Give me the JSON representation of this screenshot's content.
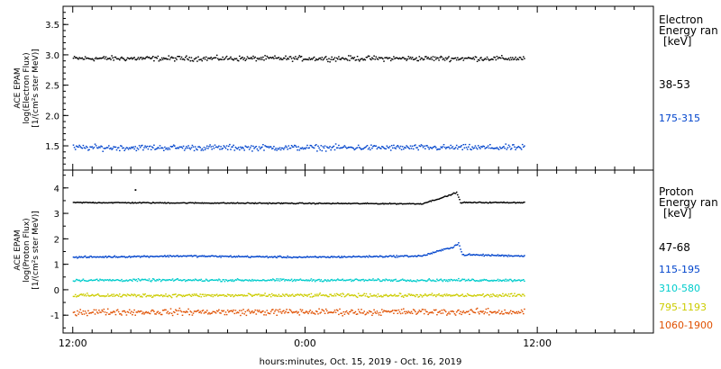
{
  "x_axis": {
    "title": "hours:minutes, Oct. 15, 2019 - Oct. 16, 2019",
    "ticks": [
      {
        "hours": 0,
        "label": "12:00"
      },
      {
        "hours": 12,
        "label": "0:00"
      },
      {
        "hours": 24,
        "label": "12:00"
      }
    ],
    "minor_every_hours": 1,
    "range_hours": [
      -0.5,
      30
    ]
  },
  "panels": [
    {
      "id": "electron",
      "ylabel": [
        "ACE EPAM",
        "log(Electron Flux)",
        "[1/(cm²s ster MeV)]"
      ],
      "yrange": [
        1.1,
        3.8
      ],
      "yticks": [
        "1.5",
        "2.0",
        "2.5",
        "3.0",
        "3.5"
      ],
      "legend_header": [
        "Electron",
        "Energy ran",
        "[keV]"
      ],
      "channels": [
        {
          "label": "38-53",
          "color": "#000000"
        },
        {
          "label": "175-315",
          "color": "#0044cc"
        }
      ]
    },
    {
      "id": "proton",
      "ylabel": [
        "ACE EPAM",
        "log(Proton Flux)",
        "[1/(cm²s ster MeV)]"
      ],
      "yrange": [
        -1.7,
        4.7
      ],
      "yticks": [
        "-1",
        "0",
        "1",
        "2",
        "3",
        "4"
      ],
      "legend_header": [
        "Proton",
        "Energy ran",
        "[keV]"
      ],
      "channels": [
        {
          "label": "47-68",
          "color": "#000000"
        },
        {
          "label": "115-195",
          "color": "#0044cc"
        },
        {
          "label": "310-580",
          "color": "#00cccc"
        },
        {
          "label": "795-1193",
          "color": "#cccc00"
        },
        {
          "label": "1060-1900",
          "color": "#e05000"
        }
      ]
    }
  ],
  "chart_data": [
    {
      "type": "scatter",
      "x_unit": "hours from Oct. 15, 2019 12:00",
      "ylabel": "ACE EPAM log(Electron Flux) [1/(cm²s ster MeV)]",
      "ylim": [
        1.1,
        3.8
      ],
      "xlim": [
        -0.5,
        30
      ],
      "series": [
        {
          "name": "38-53",
          "color": "#000000",
          "x_start": 0,
          "x_end": 23.3,
          "baseline": [
            [
              0,
              2.95
            ],
            [
              23.3,
              2.95
            ]
          ],
          "scatter": 0.06
        },
        {
          "name": "175-315",
          "color": "#0044cc",
          "x_start": 0,
          "x_end": 23.3,
          "baseline": [
            [
              0,
              1.48
            ],
            [
              23.3,
              1.48
            ]
          ],
          "scatter": 0.07
        }
      ]
    },
    {
      "type": "scatter",
      "x_unit": "hours from Oct. 15, 2019 12:00",
      "ylabel": "ACE EPAM log(Proton Flux) [1/(cm²s ster MeV)]",
      "ylim": [
        -1.7,
        4.7
      ],
      "xlim": [
        -0.5,
        30
      ],
      "series": [
        {
          "name": "47-68",
          "color": "#000000",
          "x_start": 0,
          "x_end": 23.3,
          "baseline": [
            [
              0,
              3.45
            ],
            [
              18.0,
              3.4
            ],
            [
              19.3,
              3.7
            ],
            [
              19.8,
              3.85
            ],
            [
              20.0,
              3.45
            ],
            [
              23.3,
              3.45
            ]
          ],
          "scatter": 0.03,
          "outliers": [
            [
              3.2,
              3.95
            ]
          ]
        },
        {
          "name": "115-195",
          "color": "#0044cc",
          "x_start": 0,
          "x_end": 23.3,
          "baseline": [
            [
              0,
              1.3
            ],
            [
              5.5,
              1.35
            ],
            [
              12.0,
              1.3
            ],
            [
              18.0,
              1.35
            ],
            [
              19.6,
              1.7
            ],
            [
              19.9,
              1.85
            ],
            [
              20.1,
              1.4
            ],
            [
              23.3,
              1.35
            ]
          ],
          "scatter": 0.05
        },
        {
          "name": "310-580",
          "color": "#00cccc",
          "x_start": 0,
          "x_end": 23.3,
          "baseline": [
            [
              0,
              0.4
            ],
            [
              23.3,
              0.4
            ]
          ],
          "scatter": 0.07
        },
        {
          "name": "795-1193",
          "color": "#cccc00",
          "x_start": 0,
          "x_end": 23.3,
          "baseline": [
            [
              0,
              -0.2
            ],
            [
              23.3,
              -0.2
            ]
          ],
          "scatter": 0.1
        },
        {
          "name": "1060-1900",
          "color": "#e05000",
          "x_start": 0,
          "x_end": 23.3,
          "baseline": [
            [
              0,
              -0.85
            ],
            [
              23.3,
              -0.85
            ]
          ],
          "scatter": 0.18
        }
      ]
    }
  ]
}
